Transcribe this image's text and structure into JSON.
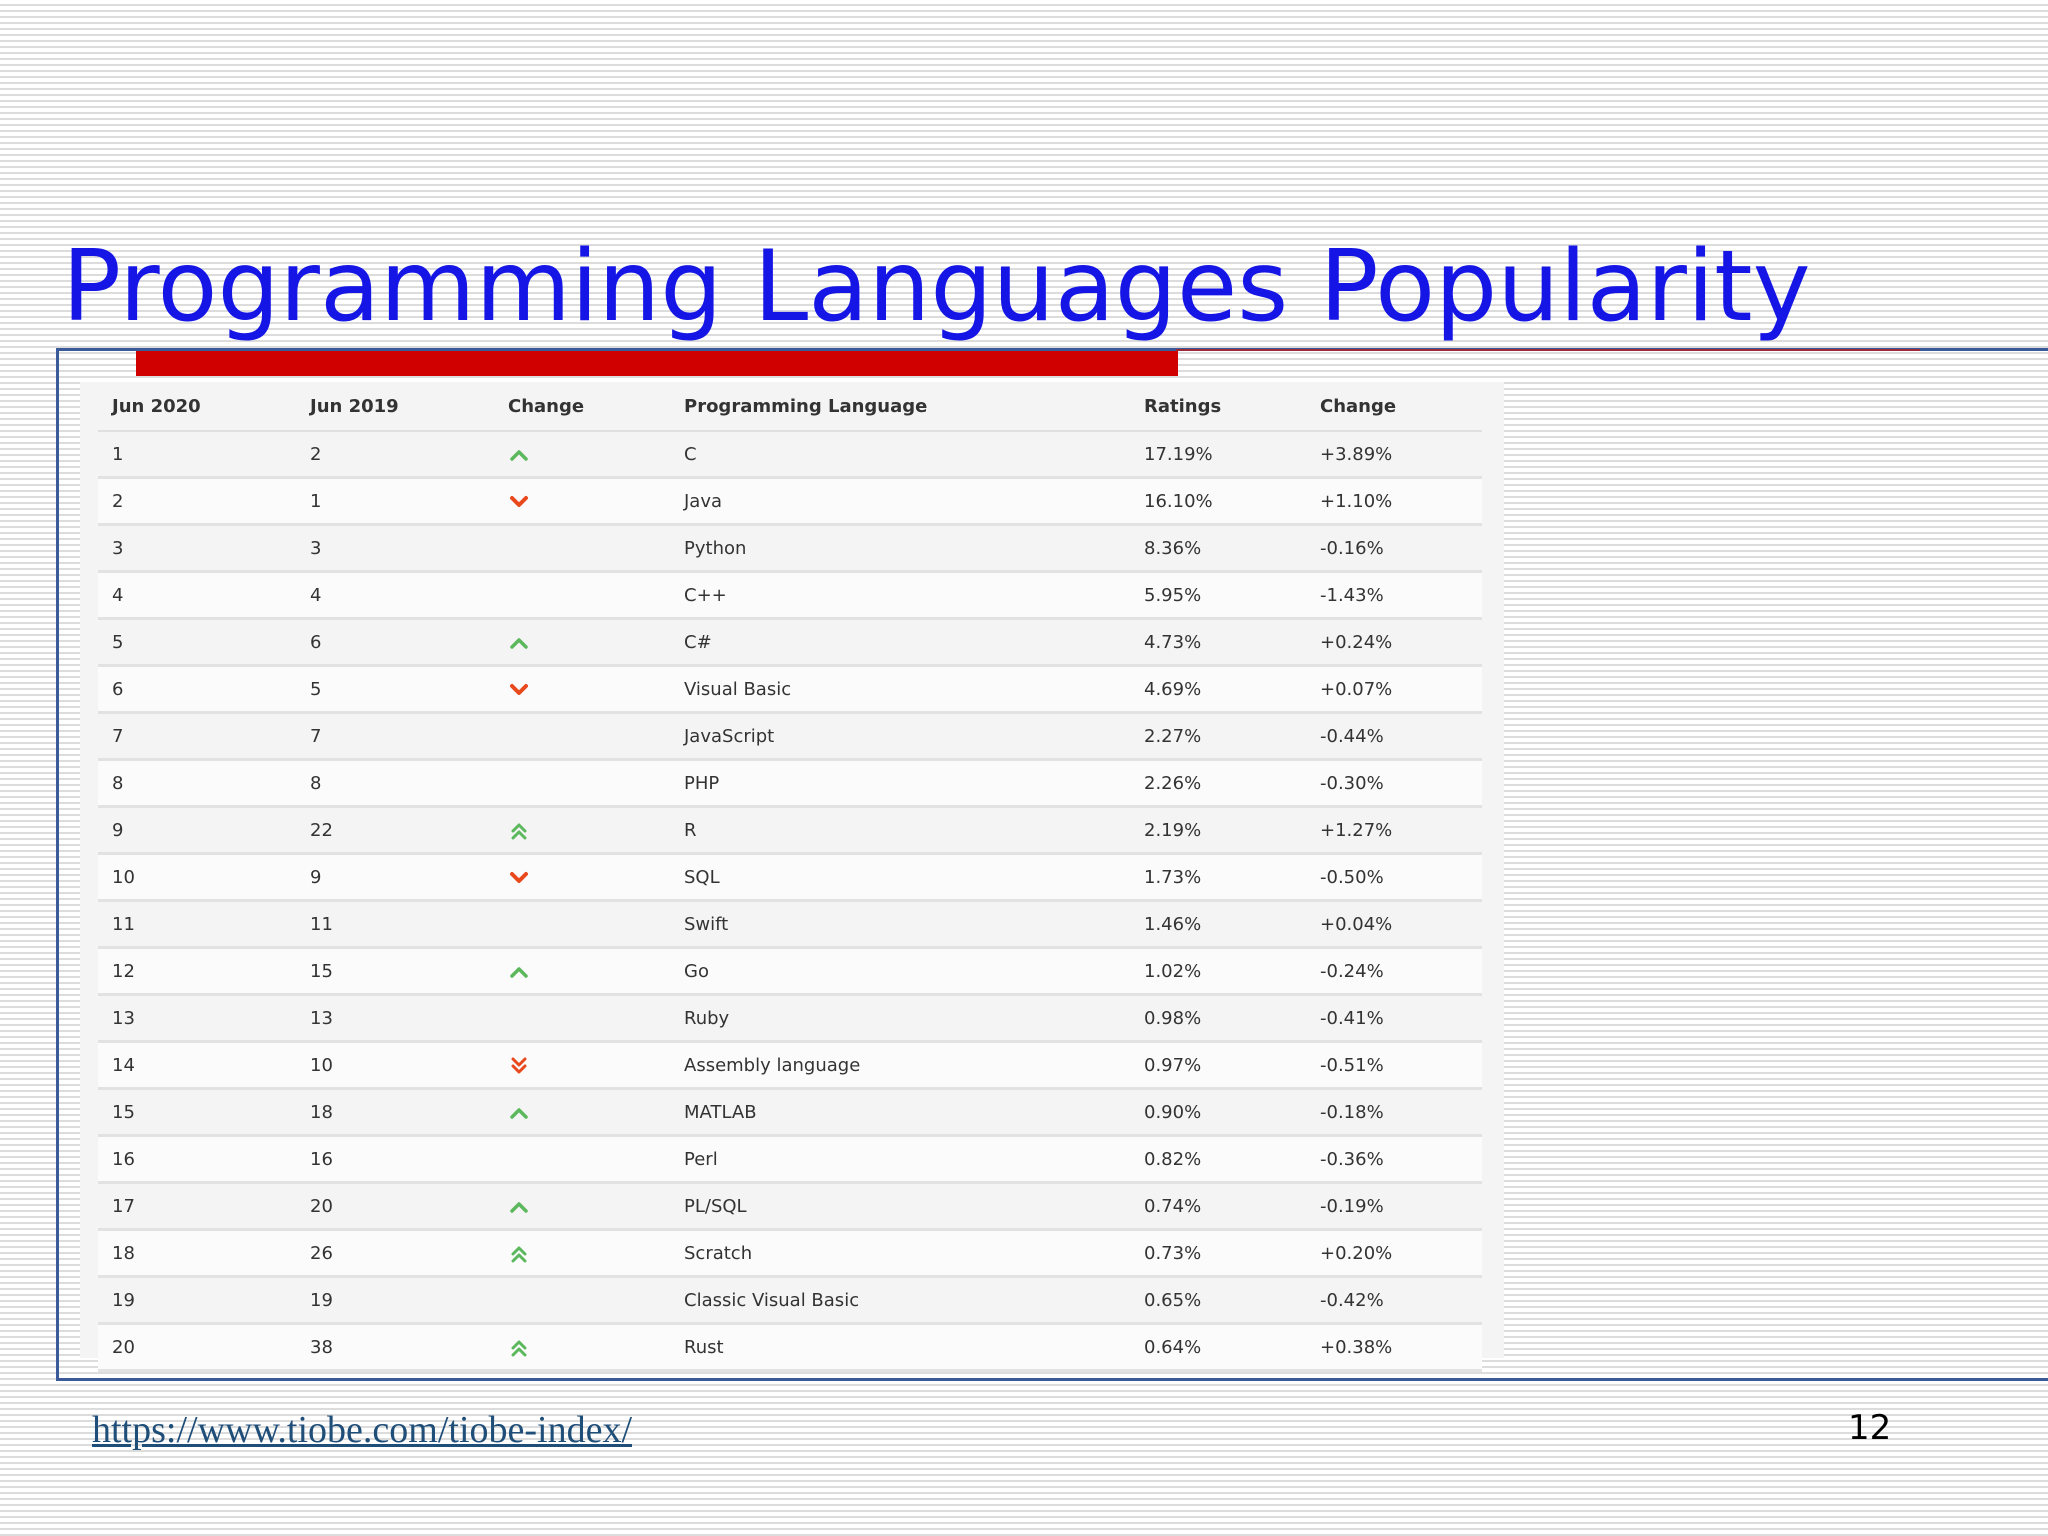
{
  "slide": {
    "title": "Programming Languages Popularity",
    "source_url": "https://www.tiobe.com/tiobe-index/",
    "page_number": "12"
  },
  "colors": {
    "title": "#1515e6",
    "accent_bar": "#d10000",
    "frame": "#3b5a9a",
    "arrow_up": "#5cb85c",
    "arrow_down": "#e8491d"
  },
  "table": {
    "headers": [
      "Jun 2020",
      "Jun 2019",
      "Change",
      "Programming Language",
      "Ratings",
      "Change"
    ],
    "rows": [
      {
        "jun2020": "1",
        "jun2019": "2",
        "change_icon": "chevron-up-icon",
        "language": "C",
        "rating": "17.19%",
        "change": "+3.89%"
      },
      {
        "jun2020": "2",
        "jun2019": "1",
        "change_icon": "chevron-down-icon",
        "language": "Java",
        "rating": "16.10%",
        "change": "+1.10%"
      },
      {
        "jun2020": "3",
        "jun2019": "3",
        "change_icon": "",
        "language": "Python",
        "rating": "8.36%",
        "change": "-0.16%"
      },
      {
        "jun2020": "4",
        "jun2019": "4",
        "change_icon": "",
        "language": "C++",
        "rating": "5.95%",
        "change": "-1.43%"
      },
      {
        "jun2020": "5",
        "jun2019": "6",
        "change_icon": "chevron-up-icon",
        "language": "C#",
        "rating": "4.73%",
        "change": "+0.24%"
      },
      {
        "jun2020": "6",
        "jun2019": "5",
        "change_icon": "chevron-down-icon",
        "language": "Visual Basic",
        "rating": "4.69%",
        "change": "+0.07%"
      },
      {
        "jun2020": "7",
        "jun2019": "7",
        "change_icon": "",
        "language": "JavaScript",
        "rating": "2.27%",
        "change": "-0.44%"
      },
      {
        "jun2020": "8",
        "jun2019": "8",
        "change_icon": "",
        "language": "PHP",
        "rating": "2.26%",
        "change": "-0.30%"
      },
      {
        "jun2020": "9",
        "jun2019": "22",
        "change_icon": "double-chevron-up-icon",
        "language": "R",
        "rating": "2.19%",
        "change": "+1.27%"
      },
      {
        "jun2020": "10",
        "jun2019": "9",
        "change_icon": "chevron-down-icon",
        "language": "SQL",
        "rating": "1.73%",
        "change": "-0.50%"
      },
      {
        "jun2020": "11",
        "jun2019": "11",
        "change_icon": "",
        "language": "Swift",
        "rating": "1.46%",
        "change": "+0.04%"
      },
      {
        "jun2020": "12",
        "jun2019": "15",
        "change_icon": "chevron-up-icon",
        "language": "Go",
        "rating": "1.02%",
        "change": "-0.24%"
      },
      {
        "jun2020": "13",
        "jun2019": "13",
        "change_icon": "",
        "language": "Ruby",
        "rating": "0.98%",
        "change": "-0.41%"
      },
      {
        "jun2020": "14",
        "jun2019": "10",
        "change_icon": "double-chevron-down-icon",
        "language": "Assembly language",
        "rating": "0.97%",
        "change": "-0.51%"
      },
      {
        "jun2020": "15",
        "jun2019": "18",
        "change_icon": "chevron-up-icon",
        "language": "MATLAB",
        "rating": "0.90%",
        "change": "-0.18%"
      },
      {
        "jun2020": "16",
        "jun2019": "16",
        "change_icon": "",
        "language": "Perl",
        "rating": "0.82%",
        "change": "-0.36%"
      },
      {
        "jun2020": "17",
        "jun2019": "20",
        "change_icon": "chevron-up-icon",
        "language": "PL/SQL",
        "rating": "0.74%",
        "change": "-0.19%"
      },
      {
        "jun2020": "18",
        "jun2019": "26",
        "change_icon": "double-chevron-up-icon",
        "language": "Scratch",
        "rating": "0.73%",
        "change": "+0.20%"
      },
      {
        "jun2020": "19",
        "jun2019": "19",
        "change_icon": "",
        "language": "Classic Visual Basic",
        "rating": "0.65%",
        "change": "-0.42%"
      },
      {
        "jun2020": "20",
        "jun2019": "38",
        "change_icon": "double-chevron-up-icon",
        "language": "Rust",
        "rating": "0.64%",
        "change": "+0.38%"
      }
    ]
  }
}
